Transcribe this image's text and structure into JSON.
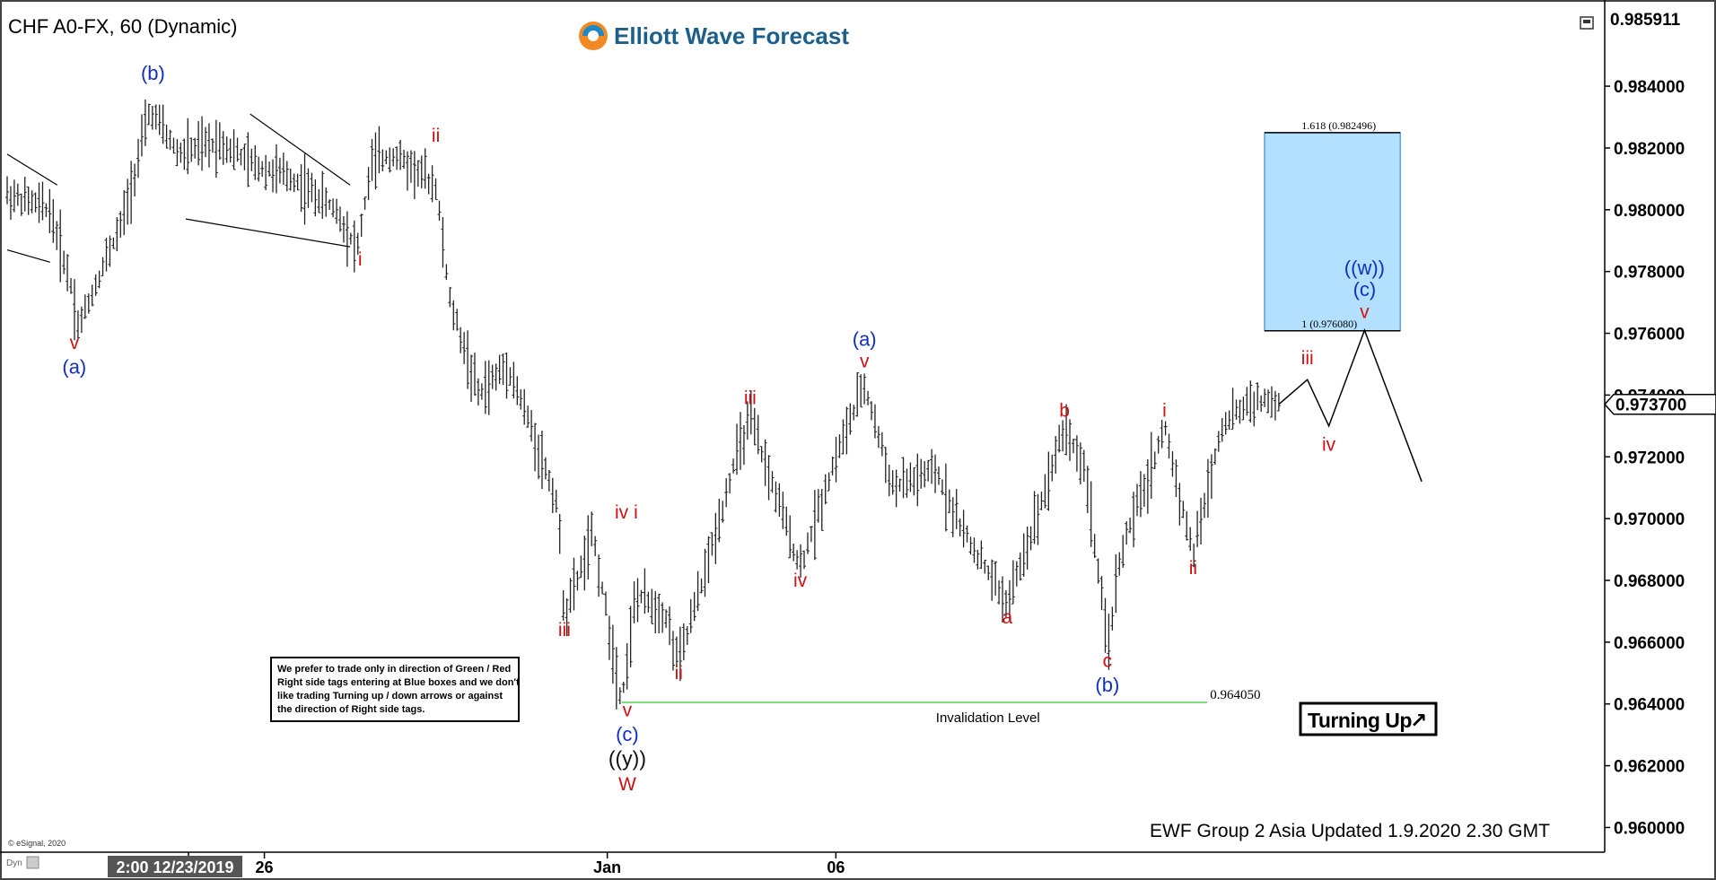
{
  "header": {
    "title": "CHF A0-FX, 60 (Dynamic)",
    "brand": "Elliott Wave Forecast"
  },
  "copyright": "© eSignal, 2020",
  "corner_tag": "Dyn",
  "footer": "EWF Group 2 Asia Updated 1.9.2020 2.30 GMT",
  "note": {
    "lines": [
      "We prefer to trade only in direction of Green / Red",
      "Right side tags entering at Blue boxes and we don't",
      "like trading Turning up / down arrows or against",
      "the direction of Right side tags."
    ]
  },
  "badge": {
    "label": "Turning Up",
    "arrow": "↗"
  },
  "colors": {
    "red": "#d01010",
    "blue": "#1030c0",
    "box": "#b3e0ff",
    "invalidation": "#7ee07e",
    "bg": "#ffffff"
  },
  "chart_data": {
    "type": "ohlc",
    "symbol": "CHF A0-FX",
    "interval": "60",
    "ylim": [
      0.9592,
      0.9865
    ],
    "y_ticks": [
      "0.960000",
      "0.962000",
      "0.964000",
      "0.966000",
      "0.968000",
      "0.970000",
      "0.972000",
      "0.974000",
      "0.976000",
      "0.978000",
      "0.980000",
      "0.982000",
      "0.984000"
    ],
    "x_ticks": [
      {
        "label": "2:00 12/23/2019",
        "t": 0.0,
        "highlight": true
      },
      {
        "label": "26",
        "t": 0.18
      },
      {
        "label": "Jan",
        "t": 0.42
      },
      {
        "label": "06",
        "t": 0.58
      }
    ],
    "price_top": "0.985911",
    "last_price": "0.973700",
    "price_path": [
      [
        0.0,
        0.9805
      ],
      [
        0.03,
        0.98
      ],
      [
        0.045,
        0.9775
      ],
      [
        0.05,
        0.9762
      ],
      [
        0.07,
        0.9785
      ],
      [
        0.08,
        0.9795
      ],
      [
        0.1,
        0.9832
      ],
      [
        0.12,
        0.9818
      ],
      [
        0.15,
        0.9822
      ],
      [
        0.17,
        0.9815
      ],
      [
        0.2,
        0.981
      ],
      [
        0.23,
        0.98
      ],
      [
        0.245,
        0.9787
      ],
      [
        0.255,
        0.9815
      ],
      [
        0.27,
        0.9818
      ],
      [
        0.3,
        0.9808
      ],
      [
        0.31,
        0.977
      ],
      [
        0.33,
        0.974
      ],
      [
        0.35,
        0.975
      ],
      [
        0.37,
        0.9725
      ],
      [
        0.385,
        0.9705
      ],
      [
        0.39,
        0.9668
      ],
      [
        0.41,
        0.9695
      ],
      [
        0.42,
        0.9668
      ],
      [
        0.43,
        0.9641
      ],
      [
        0.44,
        0.9675
      ],
      [
        0.46,
        0.967
      ],
      [
        0.47,
        0.9653
      ],
      [
        0.49,
        0.9685
      ],
      [
        0.51,
        0.972
      ],
      [
        0.52,
        0.9732
      ],
      [
        0.54,
        0.9705
      ],
      [
        0.555,
        0.9684
      ],
      [
        0.58,
        0.972
      ],
      [
        0.6,
        0.9743
      ],
      [
        0.62,
        0.971
      ],
      [
        0.65,
        0.9715
      ],
      [
        0.67,
        0.9695
      ],
      [
        0.69,
        0.968
      ],
      [
        0.7,
        0.9672
      ],
      [
        0.72,
        0.97
      ],
      [
        0.74,
        0.973
      ],
      [
        0.755,
        0.9715
      ],
      [
        0.77,
        0.9658
      ],
      [
        0.78,
        0.969
      ],
      [
        0.8,
        0.9715
      ],
      [
        0.81,
        0.973
      ],
      [
        0.83,
        0.9688
      ],
      [
        0.85,
        0.973
      ],
      [
        0.87,
        0.9738
      ],
      [
        0.89,
        0.9737
      ]
    ],
    "projection": [
      [
        0.89,
        0.9737
      ],
      [
        0.91,
        0.9745
      ],
      [
        0.925,
        0.973
      ],
      [
        0.95,
        0.9761
      ],
      [
        0.99,
        0.9712
      ]
    ],
    "blue_box": {
      "y_low": 0.97608,
      "y_high": 0.982496,
      "x_start": 0.88,
      "x_end": 0.975
    },
    "fib_levels": [
      {
        "label": "1.618 (0.982496)",
        "y": 0.982496
      },
      {
        "label": "1 (0.976080)",
        "y": 0.97608
      }
    ],
    "invalidation": {
      "label": "Invalidation Level",
      "value_label": "0.964050",
      "y": 0.96405
    },
    "wave_labels": [
      {
        "text": "v",
        "t": 0.047,
        "y": 0.9755,
        "color": "red"
      },
      {
        "text": "(a)",
        "t": 0.047,
        "y": 0.9747,
        "color": "blue"
      },
      {
        "text": "(b)",
        "t": 0.102,
        "y": 0.9842,
        "color": "blue"
      },
      {
        "text": "ii",
        "t": 0.3,
        "y": 0.9822,
        "color": "red"
      },
      {
        "text": "i",
        "t": 0.247,
        "y": 0.9782,
        "color": "red"
      },
      {
        "text": "iii",
        "t": 0.39,
        "y": 0.9662,
        "color": "red"
      },
      {
        "text": "iv",
        "t": 0.43,
        "y": 0.97,
        "color": "red"
      },
      {
        "text": "i",
        "t": 0.44,
        "y": 0.97,
        "color": "red"
      },
      {
        "text": "ii",
        "t": 0.47,
        "y": 0.9648,
        "color": "red"
      },
      {
        "text": "v",
        "t": 0.434,
        "y": 0.9636,
        "color": "red"
      },
      {
        "text": "(c)",
        "t": 0.434,
        "y": 0.9628,
        "color": "blue"
      },
      {
        "text": "((y))",
        "t": 0.434,
        "y": 0.962,
        "color": "black"
      },
      {
        "text": "W",
        "t": 0.434,
        "y": 0.9612,
        "color": "red"
      },
      {
        "text": "iii",
        "t": 0.52,
        "y": 0.9737,
        "color": "red"
      },
      {
        "text": "iv",
        "t": 0.555,
        "y": 0.9678,
        "color": "red"
      },
      {
        "text": "v",
        "t": 0.6,
        "y": 0.9749,
        "color": "red"
      },
      {
        "text": "(a)",
        "t": 0.6,
        "y": 0.9756,
        "color": "blue"
      },
      {
        "text": "a",
        "t": 0.7,
        "y": 0.9666,
        "color": "red"
      },
      {
        "text": "b",
        "t": 0.74,
        "y": 0.9733,
        "color": "red"
      },
      {
        "text": "c",
        "t": 0.77,
        "y": 0.9652,
        "color": "red"
      },
      {
        "text": "(b)",
        "t": 0.77,
        "y": 0.9644,
        "color": "blue"
      },
      {
        "text": "i",
        "t": 0.81,
        "y": 0.9733,
        "color": "red"
      },
      {
        "text": "ii",
        "t": 0.83,
        "y": 0.9682,
        "color": "red"
      },
      {
        "text": "iii",
        "t": 0.91,
        "y": 0.975,
        "color": "red"
      },
      {
        "text": "iv",
        "t": 0.925,
        "y": 0.9722,
        "color": "red"
      },
      {
        "text": "v",
        "t": 0.95,
        "y": 0.9765,
        "color": "red"
      },
      {
        "text": "(c)",
        "t": 0.95,
        "y": 0.9772,
        "color": "blue"
      },
      {
        "text": "((w))",
        "t": 0.95,
        "y": 0.9779,
        "color": "blue"
      }
    ]
  }
}
